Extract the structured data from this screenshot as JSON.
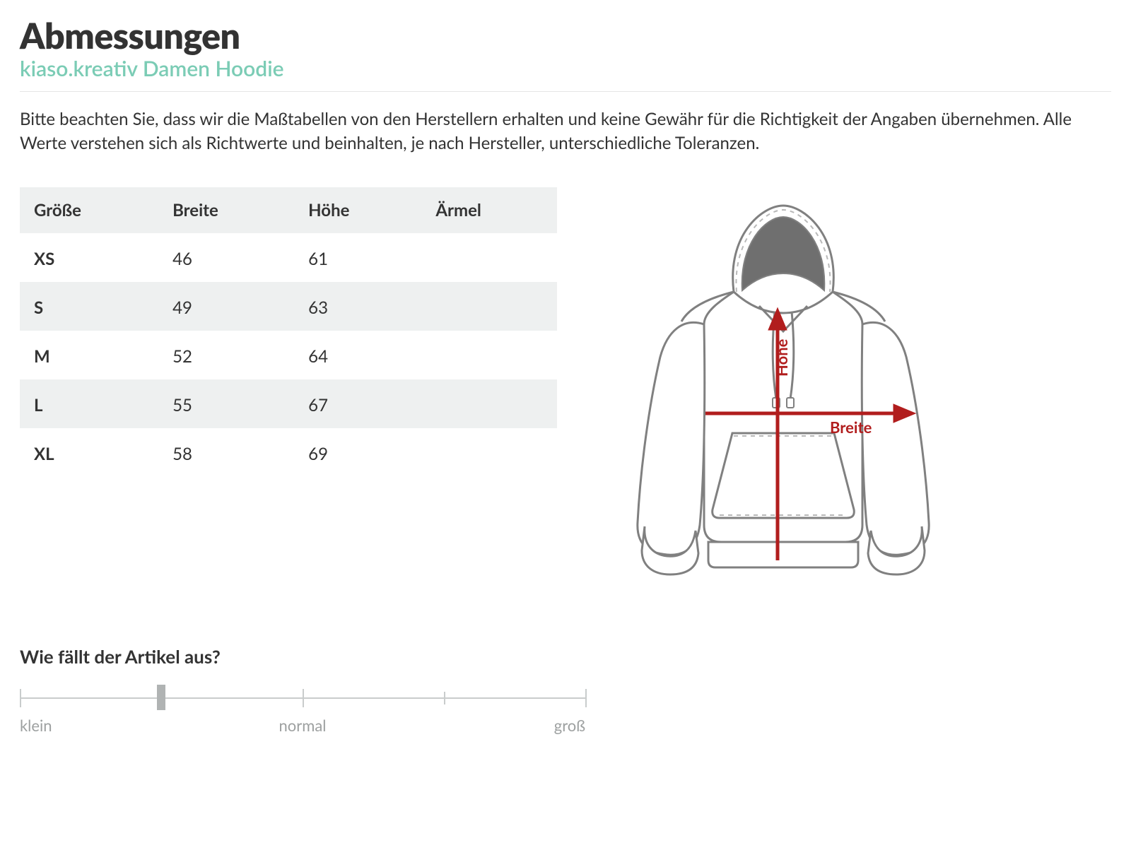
{
  "header": {
    "title": "Abmessungen",
    "subtitle": "kiaso.kreativ Damen Hoodie"
  },
  "disclaimer": "Bitte beachten Sie, dass wir die Maßtabellen von den Herstellern erhalten und keine Gewähr für die Richtigkeit der Angaben übernehmen. Alle Werte verstehen sich als Richtwerte und beinhalten, je nach Hersteller, unterschiedliche Toleranzen.",
  "table": {
    "columns": [
      "Größe",
      "Breite",
      "Höhe",
      "Ärmel"
    ],
    "rows": [
      [
        "XS",
        "46",
        "61",
        ""
      ],
      [
        "S",
        "49",
        "63",
        ""
      ],
      [
        "M",
        "52",
        "64",
        ""
      ],
      [
        "L",
        "55",
        "67",
        ""
      ],
      [
        "XL",
        "58",
        "69",
        ""
      ]
    ],
    "header_bg": "#eef0f0",
    "row_alt_bg": "#eef0f0"
  },
  "illustration": {
    "label_height": "Höhe",
    "label_width": "Breite",
    "arrow_color": "#b11d1d",
    "outline_color": "#808080",
    "hood_inner_color": "#6f6f6f",
    "fill_color": "#ffffff"
  },
  "fit": {
    "title": "Wie fällt der Artikel aus?",
    "labels": {
      "min": "klein",
      "mid": "normal",
      "max": "groß"
    },
    "tick_count": 5,
    "value_index": 1,
    "track_color": "#c9cccc",
    "thumb_color": "#b0b3b3",
    "label_color": "#9da0a0"
  },
  "colors": {
    "title": "#333333",
    "subtitle": "#7bccb5",
    "text": "#333333",
    "divider": "#e5e5e5"
  }
}
